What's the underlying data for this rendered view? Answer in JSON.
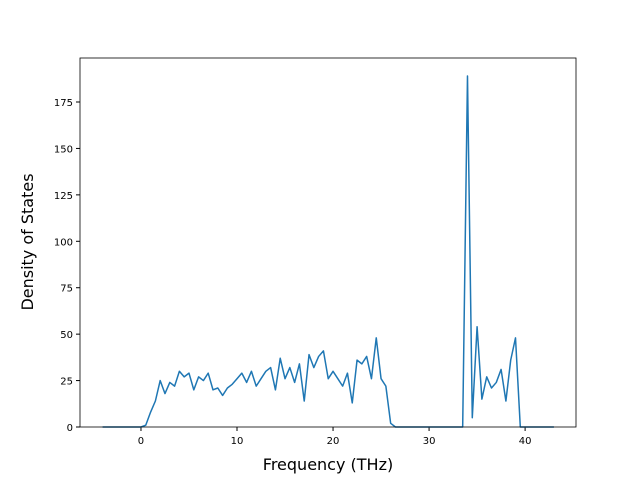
{
  "chart_data": {
    "type": "line",
    "xlabel": "Frequency (THz)",
    "ylabel": "Density of States",
    "x": [
      -4,
      -3.5,
      -3,
      -2.5,
      -2,
      -1.5,
      -1,
      -0.5,
      0,
      0.5,
      1,
      1.5,
      2,
      2.5,
      3,
      3.5,
      4,
      4.5,
      5,
      5.5,
      6,
      6.5,
      7,
      7.5,
      8,
      8.5,
      9,
      9.5,
      10,
      10.5,
      11,
      11.5,
      12,
      12.5,
      13,
      13.5,
      14,
      14.5,
      15,
      15.5,
      16,
      16.5,
      17,
      17.5,
      18,
      18.5,
      19,
      19.5,
      20,
      20.5,
      21,
      21.5,
      22,
      22.5,
      23,
      23.5,
      24,
      24.5,
      25,
      25.5,
      26,
      26.5,
      27,
      27.5,
      28,
      28.5,
      29,
      29.5,
      30,
      30.5,
      31,
      31.5,
      32,
      32.5,
      33,
      33.5,
      34,
      34.5,
      35,
      35.5,
      36,
      36.5,
      37,
      37.5,
      38,
      38.5,
      39,
      39.5,
      40,
      40.5,
      41,
      41.5,
      42,
      42.5,
      43
    ],
    "series": [
      {
        "color": "#1f77b4",
        "values": [
          0,
          0,
          0,
          0,
          0,
          0,
          0,
          0,
          0,
          1,
          8,
          14,
          25,
          18,
          24,
          22,
          30,
          27,
          29,
          20,
          27,
          25,
          29,
          20,
          21,
          17,
          21,
          23,
          26,
          29,
          24,
          30,
          22,
          26,
          30,
          32,
          20,
          37,
          26,
          32,
          24,
          34,
          14,
          39,
          32,
          38,
          41,
          26,
          30,
          26,
          22,
          29,
          13,
          36,
          34,
          38,
          26,
          48,
          26,
          22,
          2,
          0,
          0,
          0,
          0,
          0,
          0,
          0,
          0,
          0,
          0,
          0,
          0,
          0,
          0,
          0,
          189,
          5,
          54,
          15,
          27,
          21,
          24,
          31,
          14,
          36,
          48,
          0,
          0,
          0,
          0,
          0,
          0,
          0,
          0
        ]
      }
    ],
    "xlim": [
      -6.35,
      45.3
    ],
    "ylim": [
      0,
      198.7
    ],
    "xticks": [
      0,
      10,
      20,
      30,
      40
    ],
    "yticks": [
      0,
      25,
      50,
      75,
      100,
      125,
      150,
      175
    ]
  }
}
